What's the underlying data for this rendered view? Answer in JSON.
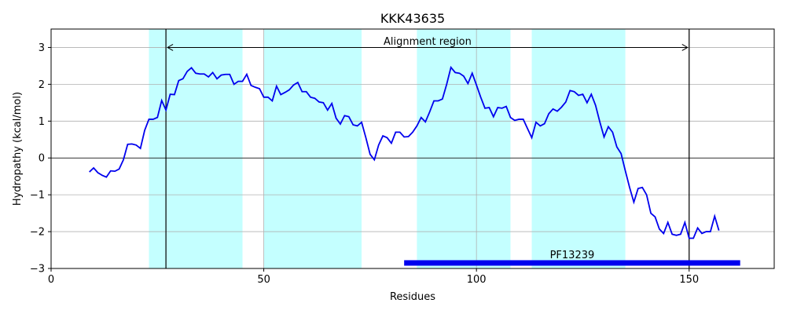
{
  "chart_data": {
    "type": "line",
    "title": "KKK43635",
    "xlabel": "Residues",
    "ylabel": "Hydropathy (kcal/mol)",
    "xlim": [
      0,
      170
    ],
    "ylim": [
      -3,
      3.5
    ],
    "xticks": [
      0,
      50,
      100,
      150
    ],
    "yticks": [
      -3,
      -2,
      -1,
      0,
      1,
      2,
      3
    ],
    "grid": true,
    "line_color": "#0000ee",
    "band_color": "#c4ffff",
    "bar_color": "#0000ee",
    "shaded_regions": [
      [
        23,
        45
      ],
      [
        50,
        73
      ],
      [
        86,
        108
      ],
      [
        113,
        135
      ]
    ],
    "vlines": [
      27,
      150
    ],
    "alignment": {
      "label": "Alignment region",
      "start": 27,
      "end": 150,
      "y": 3
    },
    "domain": {
      "label": "PF13239",
      "start": 83,
      "end": 162,
      "y": -2.85
    },
    "series": [
      {
        "x": [
          9,
          10,
          11,
          12,
          13,
          14,
          15,
          16,
          17,
          18,
          19,
          20,
          21,
          22,
          23,
          24,
          25,
          26,
          27,
          28,
          29,
          30,
          31,
          32,
          33,
          34,
          35,
          36,
          37,
          38,
          39,
          40,
          41,
          42,
          43,
          44,
          45,
          46,
          47,
          48,
          49,
          50,
          51,
          52,
          53,
          54,
          55,
          56,
          57,
          58,
          59,
          60,
          61,
          62,
          63,
          64,
          65,
          66,
          67,
          68,
          69,
          70,
          71,
          72,
          73,
          74,
          75,
          76,
          77,
          78,
          79,
          80,
          81,
          82,
          83,
          84,
          85,
          86,
          87,
          88,
          89,
          90,
          91,
          92,
          93,
          94,
          95,
          96,
          97,
          98,
          99,
          100,
          101,
          102,
          103,
          104,
          105,
          106,
          107,
          108,
          109,
          110,
          111,
          112,
          113,
          114,
          115,
          116,
          117,
          118,
          119,
          120,
          121,
          122,
          123,
          124,
          125,
          126,
          127,
          128,
          129,
          130,
          131,
          132,
          133,
          134,
          135,
          136,
          137,
          138,
          139,
          140,
          141,
          142,
          143,
          144,
          145,
          146,
          147,
          148,
          149,
          150,
          151,
          152,
          153,
          154,
          155,
          156,
          157
        ],
        "values": [
          -0.38,
          -0.27,
          -0.4,
          -0.47,
          -0.52,
          -0.35,
          -0.36,
          -0.3,
          -0.05,
          0.37,
          0.38,
          0.35,
          0.26,
          0.75,
          1.05,
          1.05,
          1.1,
          1.56,
          1.3,
          1.73,
          1.72,
          2.1,
          2.15,
          2.35,
          2.45,
          2.3,
          2.28,
          2.28,
          2.2,
          2.32,
          2.15,
          2.25,
          2.27,
          2.27,
          2.0,
          2.08,
          2.08,
          2.27,
          1.97,
          1.92,
          1.88,
          1.65,
          1.65,
          1.55,
          1.95,
          1.72,
          1.78,
          1.85,
          1.98,
          2.05,
          1.8,
          1.8,
          1.65,
          1.62,
          1.52,
          1.5,
          1.3,
          1.48,
          1.08,
          0.92,
          1.15,
          1.12,
          0.9,
          0.87,
          0.97,
          0.55,
          0.1,
          -0.05,
          0.35,
          0.6,
          0.55,
          0.4,
          0.7,
          0.7,
          0.57,
          0.58,
          0.7,
          0.87,
          1.1,
          0.98,
          1.25,
          1.55,
          1.55,
          1.6,
          2.0,
          2.46,
          2.32,
          2.3,
          2.22,
          2.02,
          2.3,
          1.98,
          1.65,
          1.35,
          1.37,
          1.12,
          1.37,
          1.35,
          1.4,
          1.1,
          1.02,
          1.05,
          1.05,
          0.8,
          0.55,
          0.97,
          0.87,
          0.93,
          1.2,
          1.33,
          1.27,
          1.38,
          1.52,
          1.83,
          1.8,
          1.7,
          1.73,
          1.5,
          1.73,
          1.43,
          0.98,
          0.57,
          0.85,
          0.7,
          0.3,
          0.12,
          -0.35,
          -0.8,
          -1.2,
          -0.83,
          -0.8,
          -1.0,
          -1.5,
          -1.6,
          -1.93,
          -2.05,
          -1.75,
          -2.07,
          -2.1,
          -2.07,
          -1.75,
          -2.18,
          -2.18,
          -1.9,
          -2.05,
          -2.0,
          -2.0,
          -1.58,
          -1.97
        ]
      }
    ]
  }
}
